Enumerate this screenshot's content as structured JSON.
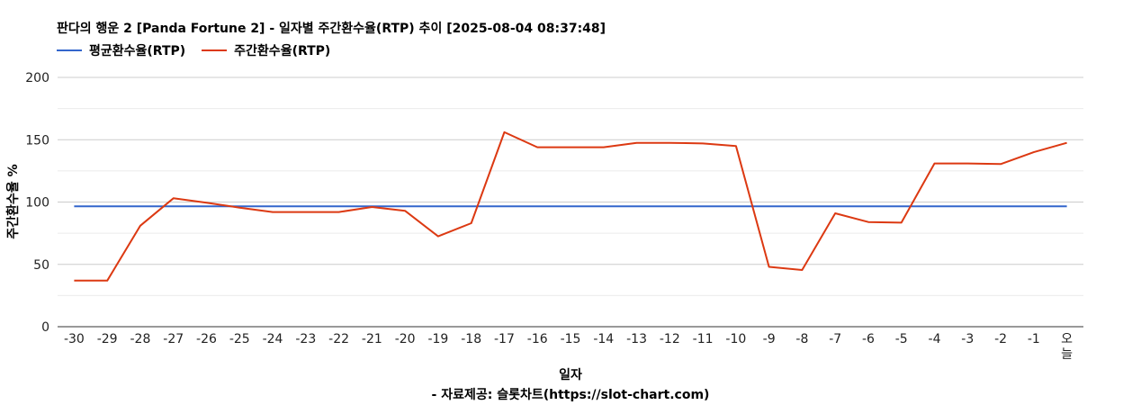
{
  "chart_data": {
    "type": "line",
    "title": "판다의 행운 2 [Panda Fortune 2] - 일자별 주간환수율(RTP) 추이 [2025-08-04 08:37:48]",
    "xlabel": "일자",
    "ylabel": "주간환수율 %",
    "source": "- 자료제공: 슬롯차트(https://slot-chart.com)",
    "ylim": [
      0,
      200
    ],
    "yticks": [
      0,
      50,
      100,
      150,
      200
    ],
    "grid": true,
    "legend_position": "top-left",
    "categories": [
      "-30",
      "-29",
      "-28",
      "-27",
      "-26",
      "-25",
      "-24",
      "-23",
      "-22",
      "-21",
      "-20",
      "-19",
      "-18",
      "-17",
      "-16",
      "-15",
      "-14",
      "-13",
      "-12",
      "-11",
      "-10",
      "-9",
      "-8",
      "-7",
      "-6",
      "-5",
      "-4",
      "-3",
      "-2",
      "-1",
      "오늘"
    ],
    "series": [
      {
        "name": "평균환수율(RTP)",
        "color": "#3366cc",
        "values": [
          96.5,
          96.5,
          96.5,
          96.5,
          96.5,
          96.5,
          96.5,
          96.5,
          96.5,
          96.5,
          96.5,
          96.5,
          96.5,
          96.5,
          96.5,
          96.5,
          96.5,
          96.5,
          96.5,
          96.5,
          96.5,
          96.5,
          96.5,
          96.5,
          96.5,
          96.5,
          96.5,
          96.5,
          96.5,
          96.5,
          96.5
        ]
      },
      {
        "name": "주간환수율(RTP)",
        "color": "#dc3912",
        "values": [
          37,
          37,
          81,
          103,
          99.5,
          95.5,
          92,
          92,
          92,
          96,
          93,
          72.5,
          83,
          156,
          144,
          144,
          144,
          147.5,
          147.5,
          147,
          145,
          48,
          45.5,
          91,
          84,
          83.5,
          131,
          131,
          130.5,
          140,
          147.5
        ]
      }
    ]
  }
}
